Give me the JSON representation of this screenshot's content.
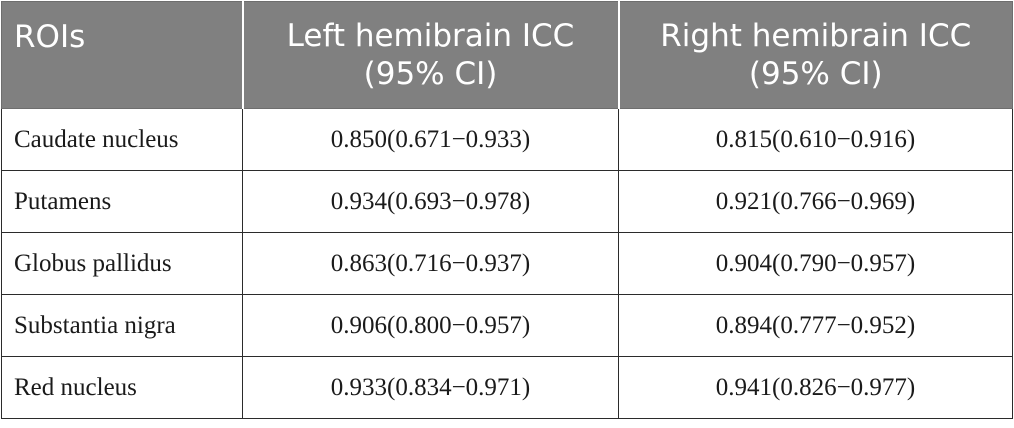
{
  "header": {
    "col1": "ROIs",
    "col2_line1": "Left hemibrain ICC",
    "col2_line2": "(95% CI)",
    "col3_line1": "Right hemibrain ICC",
    "col3_line2": "(95% CI)"
  },
  "rows": [
    {
      "roi": "Caudate nucleus",
      "left": "0.850(0.671−0.933)",
      "right": "0.815(0.610−0.916)"
    },
    {
      "roi": "Putamens",
      "left": "0.934(0.693−0.978)",
      "right": "0.921(0.766−0.969)"
    },
    {
      "roi": "Globus pallidus",
      "left": "0.863(0.716−0.937)",
      "right": "0.904(0.790−0.957)"
    },
    {
      "roi": "Substantia nigra",
      "left": "0.906(0.800−0.957)",
      "right": "0.894(0.777−0.952)"
    },
    {
      "roi": "Red nucleus",
      "left": "0.933(0.834−0.971)",
      "right": "0.941(0.826−0.977)"
    }
  ],
  "colors": {
    "header_bg": "#808080",
    "header_text": "#ffffff",
    "body_text": "#1a1a1a",
    "grid": "#2b2b2b"
  }
}
